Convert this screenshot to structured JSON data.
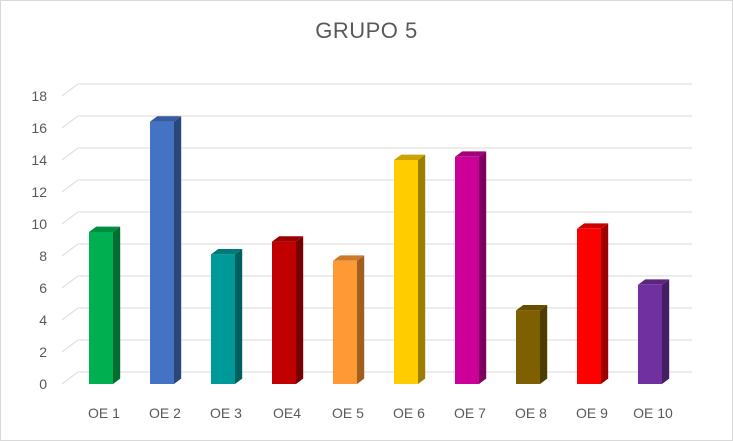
{
  "chart_data": {
    "type": "bar",
    "title": "GRUPO 5",
    "xlabel": "",
    "ylabel": "",
    "ylim": [
      0,
      18
    ],
    "yticks": [
      0,
      2,
      4,
      6,
      8,
      10,
      12,
      14,
      16,
      18
    ],
    "grid": true,
    "legend": "none",
    "categories": [
      "OE 1",
      "OE 2",
      "OE 3",
      "OE4",
      "OE 5",
      "OE 6",
      "OE 7",
      "OE 8",
      "OE 9",
      "OE 10"
    ],
    "values": [
      9.5,
      16.4,
      8.1,
      8.9,
      7.7,
      14.0,
      14.2,
      4.6,
      9.7,
      6.2
    ],
    "colors": [
      "#00b050",
      "#4472c4",
      "#009999",
      "#c00000",
      "#ff9933",
      "#ffcc00",
      "#cc0099",
      "#7f6000",
      "#ff0000",
      "#7030a0"
    ]
  }
}
